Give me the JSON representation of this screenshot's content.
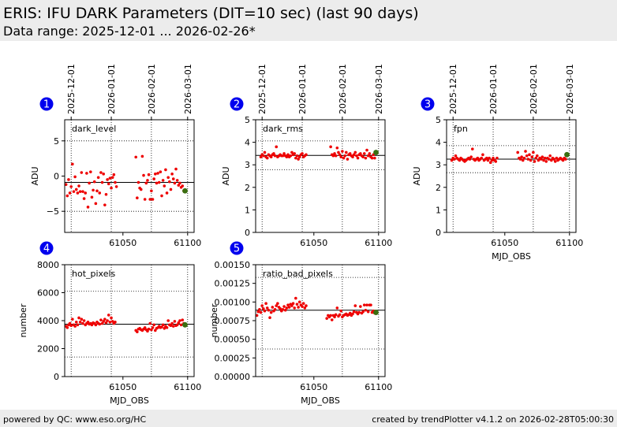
{
  "header": {
    "title": "ERIS: IFU DARK Parameters (DIT=10 sec) (last 90 days)",
    "subtitle": "Data range: 2025-12-01 ... 2026-02-26*"
  },
  "footer": {
    "left": "powered by QC: www.eso.org/HC",
    "right": "created by trendPlotter v4.1.2 on 2026-02-28T05:00:30"
  },
  "colors": {
    "points": "#ee0000",
    "last_point": "#3a6e10",
    "badge": "#0000ee",
    "header_bg": "#ececec"
  },
  "date_ticks": {
    "labels": [
      "2025-12-01",
      "2026-01-01",
      "2026-02-01",
      "2026-03-01"
    ],
    "mjd": [
      61010,
      61041,
      61072,
      61100
    ]
  },
  "chart_data": [
    {
      "type": "scatter",
      "index": "1",
      "name": "dark_level",
      "ylabel": "ADU",
      "xlabel": "",
      "ylim": [
        -8,
        8
      ],
      "yticks": [
        -5,
        0,
        5
      ],
      "ytick_labels": [
        "−5",
        "0",
        "5"
      ],
      "xlim": [
        61005,
        61105
      ],
      "xticks": [
        61050,
        61100
      ],
      "xtick_labels": [
        "61050",
        "61100"
      ],
      "reference": -0.9,
      "limits": [
        -5,
        5
      ],
      "x": [
        61006,
        61007,
        61008,
        61009,
        61010,
        61011,
        61012,
        61013,
        61014,
        61015,
        61016,
        61017,
        61018,
        61019,
        61020,
        61021,
        61022,
        61023,
        61024,
        61025,
        61026,
        61027,
        61028,
        61029,
        61030,
        61031,
        61032,
        61033,
        61034,
        61035,
        61036,
        61037,
        61038,
        61039,
        61040,
        61041,
        61042,
        61043,
        61044,
        61045,
        61060,
        61061,
        61062,
        61063,
        61064,
        61065,
        61066,
        61067,
        61068,
        61069,
        61070,
        61071,
        61072,
        61073,
        61074,
        61075,
        61076,
        61077,
        61078,
        61079,
        61080,
        61081,
        61082,
        61083,
        61084,
        61085,
        61086,
        61087,
        61088,
        61089,
        61090,
        61091,
        61092,
        61093,
        61094,
        61095,
        61096,
        61097
      ],
      "y": [
        -1.2,
        -2.8,
        -0.5,
        -2.4,
        -1.5,
        1.7,
        -2.2,
        -0.1,
        -1.9,
        -2.4,
        -1.4,
        -2.2,
        0.5,
        -2.2,
        -3.2,
        -2.4,
        0.4,
        -4.4,
        -1.0,
        0.6,
        -3.0,
        -2.0,
        -0.8,
        -3.9,
        -2.1,
        -0.2,
        -2.4,
        0.5,
        -0.9,
        0.3,
        -4.1,
        -2.6,
        -0.5,
        -1.1,
        -0.3,
        -1.7,
        -0.2,
        0.2,
        -0.9,
        -1.5,
        2.7,
        -3.1,
        -0.9,
        -1.7,
        -1.9,
        2.8,
        0.1,
        -3.3,
        -1.0,
        -0.6,
        0.2,
        -3.3,
        -2.1,
        -3.3,
        -0.4,
        0.3,
        -1.0,
        0.4,
        -0.9,
        0.6,
        -2.8,
        -0.6,
        -1.4,
        0.9,
        -2.4,
        -0.2,
        -0.8,
        -1.9,
        0.3,
        -0.4,
        -1.0,
        1.0,
        -0.6,
        -1.3,
        -1.0,
        -1.6,
        -1.4,
        -2.1
      ],
      "last": {
        "x": 61098,
        "y": -2.1
      }
    },
    {
      "type": "scatter",
      "index": "2",
      "name": "dark_rms",
      "ylabel": "ADU",
      "xlabel": "",
      "ylim": [
        0,
        5
      ],
      "yticks": [
        0,
        1,
        2,
        3,
        4,
        5
      ],
      "ytick_labels": [
        "0",
        "1",
        "2",
        "3",
        "4",
        "5"
      ],
      "xlim": [
        61005,
        61105
      ],
      "xticks": [
        61050,
        61100
      ],
      "xtick_labels": [
        "61050",
        "61100"
      ],
      "reference": 3.42,
      "limits": [
        2.78,
        4.06
      ],
      "x": [
        61009,
        61010,
        61011,
        61012,
        61013,
        61014,
        61015,
        61016,
        61017,
        61018,
        61019,
        61020,
        61021,
        61022,
        61023,
        61024,
        61025,
        61026,
        61027,
        61028,
        61029,
        61030,
        61031,
        61032,
        61033,
        61034,
        61035,
        61036,
        61037,
        61038,
        61039,
        61040,
        61041,
        61042,
        61043,
        61044,
        61063,
        61064,
        61065,
        61066,
        61067,
        61068,
        61069,
        61070,
        61071,
        61072,
        61073,
        61074,
        61075,
        61076,
        61077,
        61078,
        61079,
        61080,
        61081,
        61082,
        61083,
        61084,
        61085,
        61086,
        61087,
        61088,
        61089,
        61090,
        61091,
        61092,
        61093,
        61094,
        61095,
        61096,
        61097
      ],
      "y": [
        3.35,
        3.45,
        3.4,
        3.55,
        3.35,
        3.3,
        3.45,
        3.4,
        3.35,
        3.45,
        3.5,
        3.4,
        3.8,
        3.35,
        3.4,
        3.45,
        3.4,
        3.4,
        3.5,
        3.4,
        3.35,
        3.45,
        3.35,
        3.4,
        3.55,
        3.45,
        3.5,
        3.3,
        3.4,
        3.25,
        3.35,
        3.45,
        3.5,
        3.35,
        3.4,
        3.45,
        3.8,
        3.45,
        3.4,
        3.5,
        3.4,
        3.75,
        3.55,
        3.45,
        3.35,
        3.6,
        3.3,
        3.4,
        3.55,
        3.25,
        3.45,
        3.5,
        3.4,
        3.35,
        3.45,
        3.55,
        3.4,
        3.3,
        3.45,
        3.5,
        3.4,
        3.35,
        3.5,
        3.3,
        3.65,
        3.4,
        3.5,
        3.35,
        3.3,
        3.45,
        3.3
      ],
      "last": {
        "x": 61098,
        "y": 3.55
      }
    },
    {
      "type": "scatter",
      "index": "3",
      "name": "fpn",
      "ylabel": "ADU",
      "xlabel": "MJD_OBS",
      "ylim": [
        0,
        5
      ],
      "yticks": [
        0,
        1,
        2,
        3,
        4,
        5
      ],
      "ytick_labels": [
        "0",
        "1",
        "2",
        "3",
        "4",
        "5"
      ],
      "xlim": [
        61005,
        61105
      ],
      "xticks": [
        61050,
        61100
      ],
      "xtick_labels": [
        "61050",
        "61100"
      ],
      "reference": 3.25,
      "limits": [
        2.65,
        3.85
      ],
      "x": [
        61009,
        61010,
        61011,
        61012,
        61013,
        61014,
        61015,
        61016,
        61017,
        61018,
        61019,
        61020,
        61021,
        61022,
        61023,
        61024,
        61025,
        61026,
        61027,
        61028,
        61029,
        61030,
        61031,
        61032,
        61033,
        61034,
        61035,
        61036,
        61037,
        61038,
        61039,
        61040,
        61041,
        61042,
        61043,
        61044,
        61060,
        61061,
        61062,
        61063,
        61064,
        61065,
        61066,
        61067,
        61068,
        61069,
        61070,
        61071,
        61072,
        61073,
        61074,
        61075,
        61076,
        61077,
        61078,
        61079,
        61080,
        61081,
        61082,
        61083,
        61084,
        61085,
        61086,
        61087,
        61088,
        61089,
        61090,
        61091,
        61092,
        61093,
        61094,
        61095,
        61096,
        61097
      ],
      "y": [
        3.2,
        3.3,
        3.25,
        3.4,
        3.3,
        3.25,
        3.2,
        3.3,
        3.25,
        3.2,
        3.15,
        3.2,
        3.25,
        3.3,
        3.25,
        3.35,
        3.7,
        3.25,
        3.2,
        3.25,
        3.3,
        3.2,
        3.25,
        3.3,
        3.45,
        3.2,
        3.25,
        3.3,
        3.2,
        3.3,
        3.1,
        3.2,
        3.3,
        3.2,
        3.15,
        3.3,
        3.55,
        3.3,
        3.25,
        3.35,
        3.2,
        3.3,
        3.6,
        3.4,
        3.25,
        3.45,
        3.2,
        3.35,
        3.55,
        3.15,
        3.3,
        3.4,
        3.2,
        3.3,
        3.25,
        3.35,
        3.2,
        3.3,
        3.15,
        3.3,
        3.25,
        3.4,
        3.2,
        3.3,
        3.25,
        3.15,
        3.3,
        3.2,
        3.25,
        3.3,
        3.25,
        3.2,
        3.3,
        3.25
      ],
      "last": {
        "x": 61098,
        "y": 3.45
      }
    },
    {
      "type": "scatter",
      "index": "4",
      "name": "hot_pixels",
      "ylabel": "number",
      "xlabel": "MJD_OBS",
      "ylim": [
        0,
        8000
      ],
      "yticks": [
        0,
        2000,
        4000,
        6000,
        8000
      ],
      "ytick_labels": [
        "0",
        "2000",
        "4000",
        "6000",
        "8000"
      ],
      "xlim": [
        61005,
        61105
      ],
      "xticks": [
        61050,
        61100
      ],
      "xtick_labels": [
        "61050",
        "61100"
      ],
      "reference": 3750,
      "limits": [
        1400,
        6100
      ],
      "x": [
        61006,
        61007,
        61008,
        61009,
        61010,
        61011,
        61012,
        61013,
        61014,
        61015,
        61016,
        61017,
        61018,
        61019,
        61020,
        61021,
        61022,
        61023,
        61024,
        61025,
        61026,
        61027,
        61028,
        61029,
        61030,
        61031,
        61032,
        61033,
        61034,
        61035,
        61036,
        61037,
        61038,
        61039,
        61040,
        61041,
        61042,
        61043,
        61044,
        61060,
        61061,
        61062,
        61063,
        61064,
        61065,
        61066,
        61067,
        61068,
        61069,
        61070,
        61071,
        61072,
        61073,
        61074,
        61075,
        61076,
        61077,
        61078,
        61079,
        61080,
        61081,
        61082,
        61083,
        61084,
        61085,
        61086,
        61087,
        61088,
        61089,
        61090,
        61091,
        61092,
        61093,
        61094,
        61095,
        61096,
        61097
      ],
      "y": [
        3600,
        3500,
        3700,
        3800,
        3650,
        4100,
        3700,
        3600,
        3900,
        3700,
        4200,
        3900,
        4100,
        3800,
        4000,
        3700,
        3800,
        3900,
        3750,
        3800,
        3700,
        3850,
        3800,
        3700,
        3900,
        3800,
        3750,
        4050,
        3800,
        3950,
        4100,
        3850,
        4000,
        4400,
        3900,
        4200,
        3950,
        3800,
        3900,
        3300,
        3200,
        3400,
        3450,
        3350,
        3300,
        3400,
        3500,
        3350,
        3250,
        3400,
        3800,
        3350,
        3500,
        3700,
        3300,
        3450,
        3500,
        3600,
        3500,
        3550,
        3700,
        3450,
        3600,
        3500,
        4000,
        3700,
        3650,
        3800,
        3600,
        3950,
        3650,
        3700,
        3850,
        4000,
        3700,
        4050,
        3800
      ],
      "last": {
        "x": 61098,
        "y": 3700
      }
    },
    {
      "type": "scatter",
      "index": "5",
      "name": "ratio_bad_pixels",
      "ylabel": "number",
      "xlabel": "MJD_OBS",
      "ylim": [
        0,
        0.0015
      ],
      "yticks": [
        0,
        0.00025,
        0.0005,
        0.00075,
        0.001,
        0.00125,
        0.0015
      ],
      "ytick_labels": [
        "0.00000",
        "0.00025",
        "0.00050",
        "0.00075",
        "0.00100",
        "0.00125",
        "0.00150"
      ],
      "xlim": [
        61005,
        61105
      ],
      "xticks": [
        61050,
        61100
      ],
      "xtick_labels": [
        "61050",
        "61100"
      ],
      "reference": 0.00089,
      "limits": [
        0.00037,
        0.00133
      ],
      "x": [
        61006,
        61007,
        61008,
        61009,
        61010,
        61011,
        61012,
        61013,
        61014,
        61015,
        61016,
        61017,
        61018,
        61019,
        61020,
        61021,
        61022,
        61023,
        61024,
        61025,
        61026,
        61027,
        61028,
        61029,
        61030,
        61031,
        61032,
        61033,
        61034,
        61035,
        61036,
        61037,
        61038,
        61039,
        61040,
        61041,
        61042,
        61043,
        61044,
        61060,
        61061,
        61062,
        61063,
        61064,
        61065,
        61066,
        61067,
        61068,
        61069,
        61070,
        61071,
        61072,
        61073,
        61074,
        61075,
        61076,
        61077,
        61078,
        61079,
        61080,
        61081,
        61082,
        61083,
        61084,
        61085,
        61086,
        61087,
        61088,
        61089,
        61090,
        61091,
        61092,
        61093,
        61094,
        61095,
        61096,
        61097
      ],
      "y": [
        0.00082,
        0.00087,
        0.0009,
        0.00086,
        0.00095,
        0.00091,
        0.00088,
        0.00098,
        0.00092,
        0.00089,
        0.00079,
        0.00086,
        0.00093,
        0.00088,
        0.0009,
        0.00095,
        0.00098,
        0.00093,
        0.00091,
        0.00088,
        0.0009,
        0.00094,
        0.00089,
        0.00092,
        0.00096,
        0.00093,
        0.00097,
        0.00095,
        0.00098,
        0.00092,
        0.00105,
        0.00097,
        0.00093,
        0.001,
        0.00096,
        0.00094,
        0.00098,
        0.00092,
        0.00095,
        0.00078,
        0.00082,
        0.0008,
        0.00082,
        0.00076,
        0.00082,
        0.0008,
        0.00083,
        0.00092,
        0.00081,
        0.00083,
        0.00088,
        0.0008,
        0.00082,
        0.00083,
        0.00084,
        0.00082,
        0.00083,
        0.00085,
        0.00082,
        0.00084,
        0.00087,
        0.00095,
        0.00086,
        0.00084,
        0.00086,
        0.00094,
        0.00085,
        0.00087,
        0.00096,
        0.00089,
        0.00096,
        0.00087,
        0.00096,
        0.00096,
        0.00086,
        0.00088,
        0.00085
      ],
      "last": {
        "x": 61098,
        "y": 0.00086
      }
    }
  ]
}
